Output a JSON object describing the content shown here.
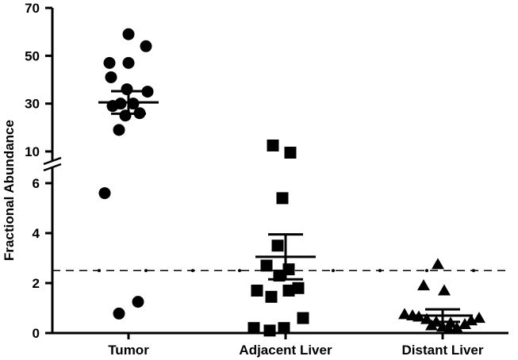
{
  "chart_data": {
    "type": "scatter",
    "title": "",
    "xlabel": "",
    "ylabel": "Fractional Abundance",
    "categories": [
      "Tumor",
      "Adjacent Liver",
      "Distant Liver"
    ],
    "y_axis_broken": true,
    "y_lower_range": [
      0,
      6
    ],
    "y_upper_range": [
      10,
      70
    ],
    "y_lower_ticks": [
      0,
      2,
      4,
      6
    ],
    "y_upper_ticks": [
      10,
      30,
      50,
      70
    ],
    "reference_line": 2.5,
    "grid": false,
    "series": [
      {
        "category": "Tumor",
        "marker": "circle",
        "values": [
          59,
          54,
          47,
          47,
          41,
          36,
          35,
          30,
          30,
          29,
          26,
          25,
          19,
          5.6,
          1.25,
          0.78
        ],
        "mean": 30.5,
        "sem_upper": 35.2,
        "sem_lower": 25.8
      },
      {
        "category": "Adjacent Liver",
        "marker": "square",
        "values": [
          12.5,
          9.5,
          5.4,
          3.5,
          2.7,
          2.55,
          2.3,
          1.8,
          1.7,
          1.7,
          1.45,
          0.6,
          0.2,
          0.2,
          0.1
        ],
        "mean": 3.05,
        "sem_upper": 3.95,
        "sem_lower": 2.15
      },
      {
        "category": "Distant Liver",
        "marker": "triangle",
        "values": [
          2.75,
          1.9,
          1.7,
          0.75,
          0.7,
          0.65,
          0.6,
          0.55,
          0.5,
          0.45,
          0.4,
          0.35,
          0.3,
          0.25,
          0.2,
          0.15
        ],
        "mean": 0.7,
        "sem_upper": 0.95,
        "sem_lower": 0.45
      }
    ]
  }
}
